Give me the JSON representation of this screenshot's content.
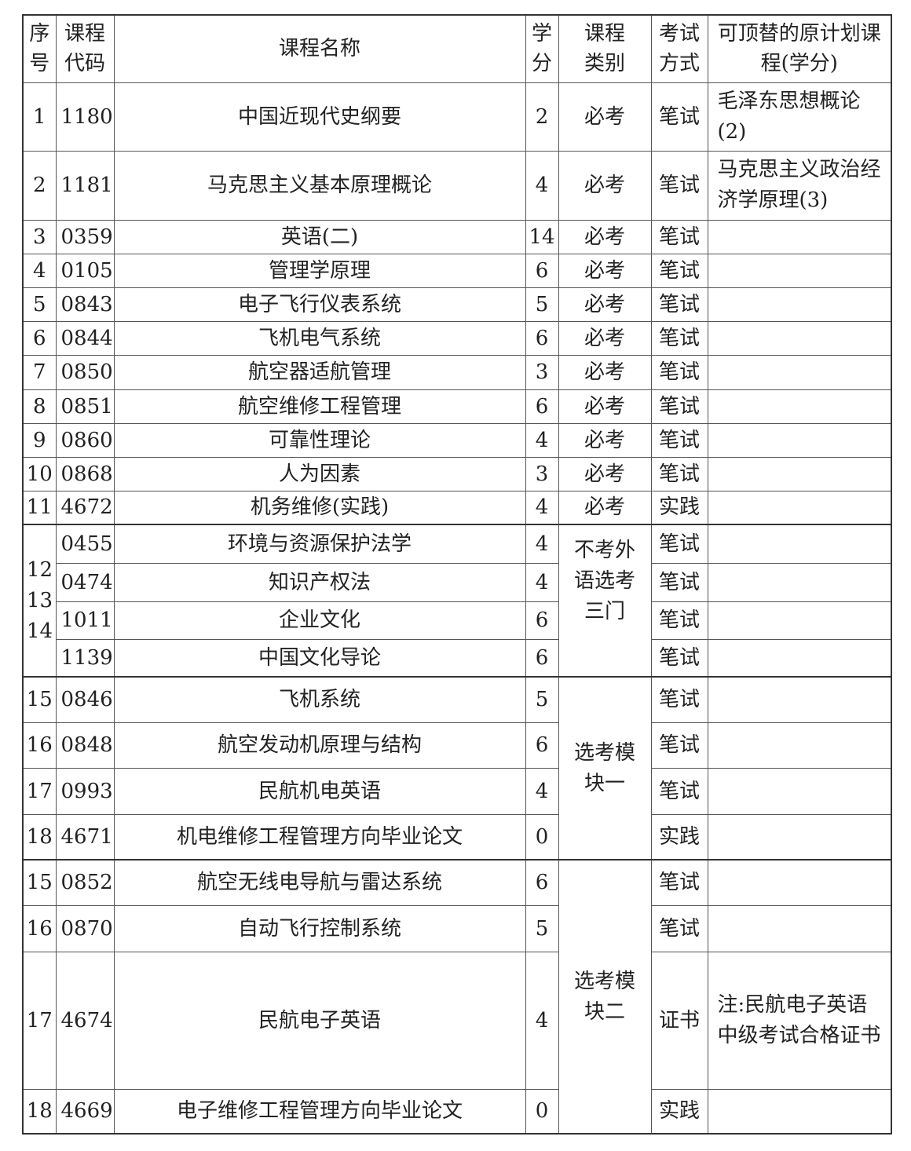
{
  "header": {
    "seq": "序号",
    "code": "课程代码",
    "name": "课程名称",
    "credits": "学分",
    "category": "课程类别",
    "method": "考试方式",
    "replacement": "可顶替的原计划课程(学分)"
  },
  "sections": [
    {
      "courses": [
        {
          "seq": "1",
          "code": "1180",
          "name": "中国近现代史纲要",
          "credits": "2",
          "category": "必考",
          "method": "笔试",
          "replacement": "毛泽东思想概论(2)"
        },
        {
          "seq": "2",
          "code": "1181",
          "name": "马克思主义基本原理概论",
          "credits": "4",
          "category": "必考",
          "method": "笔试",
          "replacement": "马克思主义政治经济学原理(3)"
        },
        {
          "seq": "3",
          "code": "0359",
          "name": "英语(二)",
          "credits": "14",
          "category": "必考",
          "method": "笔试",
          "replacement": ""
        },
        {
          "seq": "4",
          "code": "0105",
          "name": "管理学原理",
          "credits": "6",
          "category": "必考",
          "method": "笔试",
          "replacement": ""
        },
        {
          "seq": "5",
          "code": "0843",
          "name": "电子飞行仪表系统",
          "credits": "5",
          "category": "必考",
          "method": "笔试",
          "replacement": ""
        },
        {
          "seq": "6",
          "code": "0844",
          "name": "飞机电气系统",
          "credits": "6",
          "category": "必考",
          "method": "笔试",
          "replacement": ""
        },
        {
          "seq": "7",
          "code": "0850",
          "name": "航空器适航管理",
          "credits": "3",
          "category": "必考",
          "method": "笔试",
          "replacement": ""
        },
        {
          "seq": "8",
          "code": "0851",
          "name": "航空维修工程管理",
          "credits": "6",
          "category": "必考",
          "method": "笔试",
          "replacement": ""
        },
        {
          "seq": "9",
          "code": "0860",
          "name": "可靠性理论",
          "credits": "4",
          "category": "必考",
          "method": "笔试",
          "replacement": ""
        },
        {
          "seq": "10",
          "code": "0868",
          "name": "人为因素",
          "credits": "3",
          "category": "必考",
          "method": "笔试",
          "replacement": ""
        },
        {
          "seq": "11",
          "code": "4672",
          "name": "机务维修(实践)",
          "credits": "4",
          "category": "必考",
          "method": "实践",
          "replacement": ""
        }
      ]
    },
    {
      "seq": "12 13 14",
      "category": "不考外语选考三门",
      "courses": [
        {
          "code": "0455",
          "name": "环境与资源保护法学",
          "credits": "4",
          "method": "笔试",
          "replacement": ""
        },
        {
          "code": "0474",
          "name": "知识产权法",
          "credits": "4",
          "method": "笔试",
          "replacement": ""
        },
        {
          "code": "1011",
          "name": "企业文化",
          "credits": "6",
          "method": "笔试",
          "replacement": ""
        },
        {
          "code": "1139",
          "name": "中国文化导论",
          "credits": "6",
          "method": "笔试",
          "replacement": ""
        }
      ]
    },
    {
      "category": "选考模块一",
      "courses": [
        {
          "seq": "15",
          "code": "0846",
          "name": "飞机系统",
          "credits": "5",
          "method": "笔试",
          "replacement": ""
        },
        {
          "seq": "16",
          "code": "0848",
          "name": "航空发动机原理与结构",
          "credits": "6",
          "method": "笔试",
          "replacement": ""
        },
        {
          "seq": "17",
          "code": "0993",
          "name": "民航机电英语",
          "credits": "4",
          "method": "笔试",
          "replacement": ""
        },
        {
          "seq": "18",
          "code": "4671",
          "name": "机电维修工程管理方向毕业论文",
          "credits": "0",
          "method": "实践",
          "replacement": ""
        }
      ]
    },
    {
      "category": "选考模块二",
      "courses": [
        {
          "seq": "15",
          "code": "0852",
          "name": "航空无线电导航与雷达系统",
          "credits": "6",
          "method": "笔试",
          "replacement": ""
        },
        {
          "seq": "16",
          "code": "0870",
          "name": "自动飞行控制系统",
          "credits": "5",
          "method": "笔试",
          "replacement": ""
        },
        {
          "seq": "17",
          "code": "4674",
          "name": "民航电子英语",
          "credits": "4",
          "method": "证书",
          "replacement": "注:民航电子英语中级考试合格证书"
        },
        {
          "seq": "18",
          "code": "4669",
          "name": "电子维修工程管理方向毕业论文",
          "credits": "0",
          "method": "实践",
          "replacement": ""
        }
      ]
    }
  ]
}
